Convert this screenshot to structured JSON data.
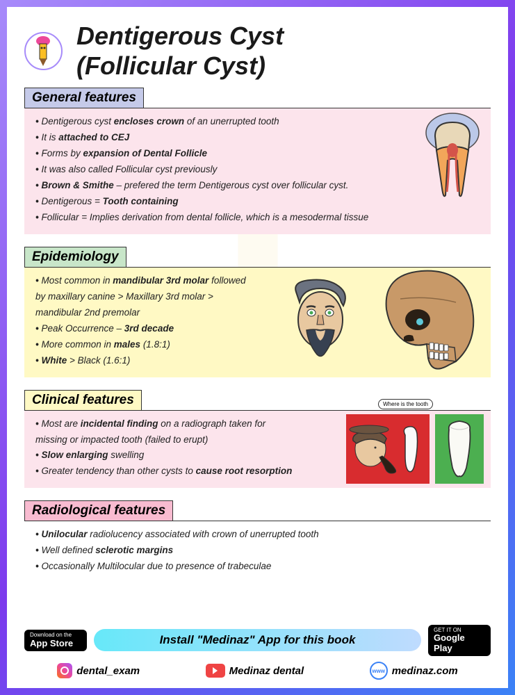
{
  "title_line1": "Dentigerous Cyst",
  "title_line2": "(Follicular Cyst)",
  "sections": {
    "general": {
      "heading": "General features",
      "header_bg": "#c5cae9",
      "body_bg": "#fce4ec",
      "bullets": [
        "Dentigerous cyst <b>encloses crown</b> of an unerrupted tooth",
        "It is <b>attached to CEJ</b>",
        "Forms by <b>expansion of Dental Follicle</b>",
        "It was also called Follicular cyst previously",
        "<b>Brown & Smithe</b> – prefered the term Dentigerous cyst over follicular cyst.",
        "Dentigerous = <b>Tooth containing</b>",
        "Follicular = Implies derivation from dental follicle, which is a mesodermal tissue"
      ]
    },
    "epi": {
      "heading": "Epidemiology",
      "header_bg": "#c8e6c9",
      "body_bg": "#fff9c4",
      "bullets": [
        "Most common in <b>mandibular 3rd molar</b> followed by maxillary canine > Maxillary 3rd molar > mandibular 2nd premolar",
        "Peak Occurrence – <b>3rd decade</b>",
        "More common in <b>males</b> (1.8:1)",
        "<b>White</b> > Black (1.6:1)"
      ]
    },
    "clinical": {
      "heading": "Clinical features",
      "header_bg": "#fff9c4",
      "body_bg": "#fce4ec",
      "bubble_text": "Where is the tooth",
      "bullets": [
        "Most are <b>incidental finding</b> on a radiograph taken for missing or impacted tooth (failed to erupt)",
        "<b>Slow enlarging</b> swelling",
        "Greater tendency than other cysts to <b>cause root resorption</b>"
      ]
    },
    "radio": {
      "heading": "Radiological features",
      "header_bg": "#f8bbd0",
      "body_bg": "#ffffff",
      "bullets": [
        "<b>Unilocular</b> radiolucency associated with crown of unerrupted tooth",
        "Well defined <b>sclerotic margins</b>",
        "Occasionally Multilocular due to presence of trabeculae"
      ]
    }
  },
  "footer": {
    "install_text": "Install \"Medinaz\" App for this book",
    "appstore_small": "Download on the",
    "appstore_big": "App Store",
    "play_small": "GET IT ON",
    "play_big": "Google Play",
    "instagram": "dental_exam",
    "youtube": "Medinaz dental",
    "website": "medinaz.com",
    "www_label": "www"
  },
  "colors": {
    "tooth_cyst": "#b0c4e8",
    "tooth_enamel": "#e8d8b8",
    "tooth_dentin": "#f2a65a",
    "tooth_pulp": "#d4544a",
    "skull": "#c89968",
    "hair": "#6b7280",
    "skin": "#e8c8a0"
  }
}
